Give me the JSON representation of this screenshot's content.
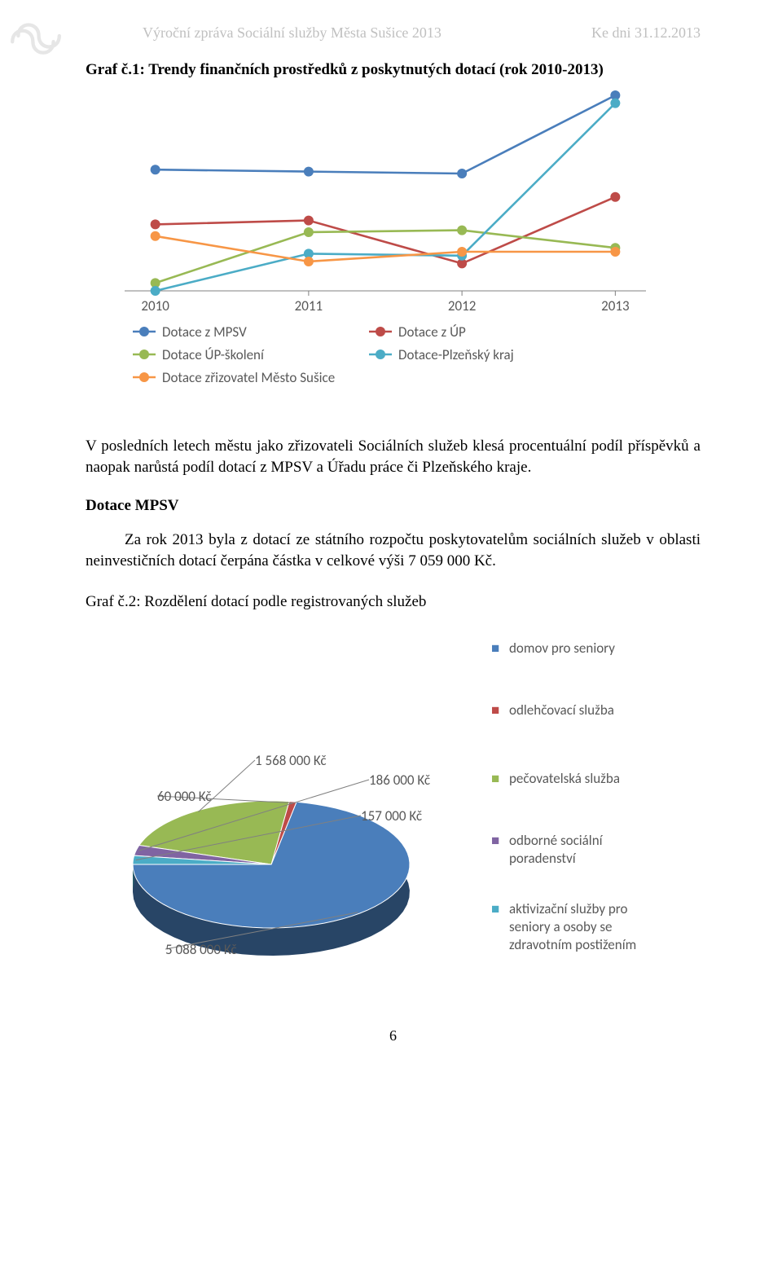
{
  "header": {
    "left": "Výroční zpráva Sociální služby Města Sušice 2013",
    "right": "Ke dni 31.12.2013"
  },
  "title1": "Graf č.1: Trendy finančních prostředků z poskytnutých dotací (rok 2010-2013)",
  "line_chart": {
    "type": "line",
    "categories": [
      "2010",
      "2011",
      "2012",
      "2013"
    ],
    "series": [
      {
        "name": "Dotace z MPSV",
        "color": "#4a7ebb",
        "values": [
          62,
          61,
          60,
          100
        ]
      },
      {
        "name": "Dotace z ÚP",
        "color": "#be4b48",
        "values": [
          34,
          36,
          14,
          48
        ]
      },
      {
        "name": "Dotace ÚP-školení",
        "color": "#98b954",
        "values": [
          4,
          30,
          31,
          22
        ]
      },
      {
        "name": "Dotace-Plzeňský kraj",
        "color": "#4bacc6",
        "values": [
          0,
          19,
          18,
          96
        ]
      },
      {
        "name": "Dotace zřizovatel Město Sušice",
        "color": "#f79646",
        "values": [
          28,
          15,
          20,
          20
        ]
      }
    ],
    "ylim": [
      0,
      100
    ],
    "plot_bg": "#ffffff",
    "grid_color": "#d9d9d9",
    "axis_line_color": "#808080",
    "marker_radius": 6,
    "line_width": 2.6
  },
  "para1": "V posledních letech městu jako zřizovateli Sociálních služeb klesá procentuální podíl příspěvků a naopak narůstá podíl dotací z MPSV a Úřadu práce či Plzeňského kraje.",
  "section_head": "Dotace MPSV",
  "para2": "Za rok 2013 byla z dotací ze státního rozpočtu poskytovatelům sociálních služeb v oblasti neinvestičních dotací čerpána částka v celkové výši 7 059 000 Kč.",
  "title2": "Graf č.2: Rozdělení dotací podle registrovaných služeb",
  "pie_chart": {
    "type": "pie_3d",
    "slices": [
      {
        "name": "domov pro seniory",
        "label": "5 088 000 Kč",
        "value": 5088000,
        "color": "#4a7ebb"
      },
      {
        "name": "odlehčovací služba",
        "label": "60 000 Kč",
        "value": 60000,
        "color": "#be4b48"
      },
      {
        "name": "pečovatelská služba",
        "label": "1 568 000 Kč",
        "value": 1568000,
        "color": "#98b954"
      },
      {
        "name": "odborné sociální poradenství",
        "label": "186 000 Kč",
        "value": 186000,
        "color": "#8064a2"
      },
      {
        "name": "aktivizační služby pro seniory a osoby se zdravotním postižením",
        "label": "157 000 Kč",
        "value": 157000,
        "color": "#4bacc6"
      }
    ],
    "legend_marker": "■"
  },
  "page_number": "6"
}
